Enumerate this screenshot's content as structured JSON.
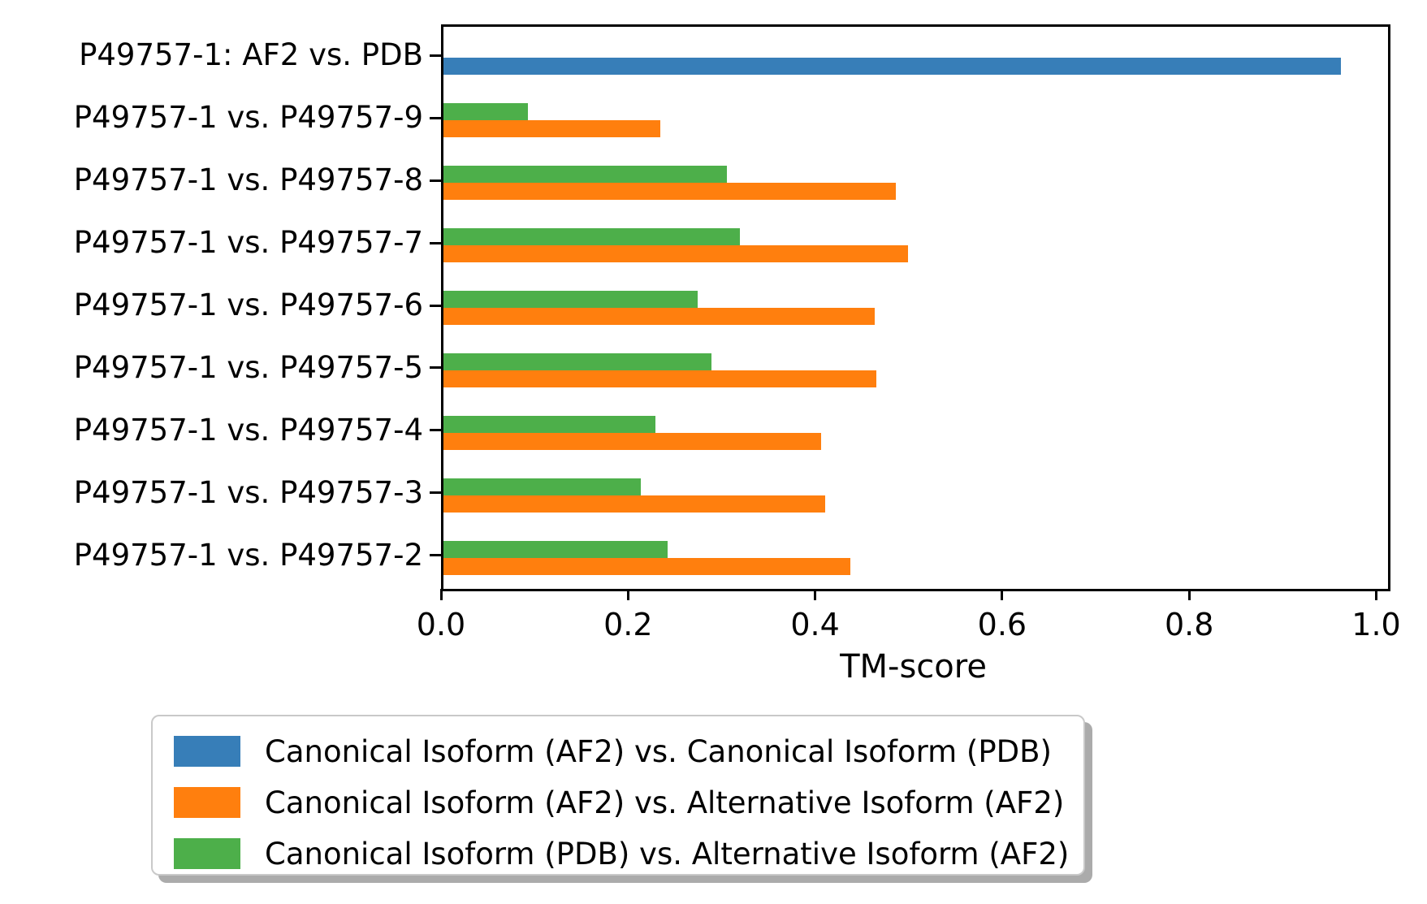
{
  "figure": {
    "background_color": "#ffffff",
    "text_color": "#000000",
    "axis_color": "#000000"
  },
  "chart_data": {
    "type": "bar",
    "orientation": "horizontal",
    "title": "",
    "xlabel": "TM-score",
    "ylabel": "",
    "grid": false,
    "legend_position": "bottom",
    "xlim": [
      0.0,
      1.01
    ],
    "x_ticks": [
      {
        "value": 0.0,
        "label": "0.0"
      },
      {
        "value": 0.2,
        "label": "0.2"
      },
      {
        "value": 0.4,
        "label": "0.4"
      },
      {
        "value": 0.6,
        "label": "0.6"
      },
      {
        "value": 0.8,
        "label": "0.8"
      },
      {
        "value": 1.0,
        "label": "1.0"
      }
    ],
    "categories": [
      "P49757-1: AF2 vs. PDB",
      "P49757-1 vs. P49757-9",
      "P49757-1 vs. P49757-8",
      "P49757-1 vs. P49757-7",
      "P49757-1 vs. P49757-6",
      "P49757-1 vs. P49757-5",
      "P49757-1 vs. P49757-4",
      "P49757-1 vs. P49757-3",
      "P49757-1 vs. P49757-2"
    ],
    "series": [
      {
        "name": "Canonical Isoform (AF2) vs. Canonical Isoform (PDB)",
        "color": "#377eb8",
        "slot": "bottom",
        "values": [
          0.96,
          null,
          null,
          null,
          null,
          null,
          null,
          null,
          null
        ]
      },
      {
        "name": "Canonical Isoform (AF2) vs. Alternative Isoform (AF2)",
        "color": "#ff7f0e",
        "slot": "bottom",
        "values": [
          null,
          0.232,
          0.484,
          0.497,
          0.461,
          0.463,
          0.404,
          0.408,
          0.435
        ]
      },
      {
        "name": "Canonical Isoform (PDB) vs. Alternative Isoform (AF2)",
        "color": "#4daf4a",
        "slot": "top",
        "values": [
          null,
          0.09,
          0.303,
          0.317,
          0.272,
          0.287,
          0.227,
          0.211,
          0.24
        ]
      }
    ]
  }
}
